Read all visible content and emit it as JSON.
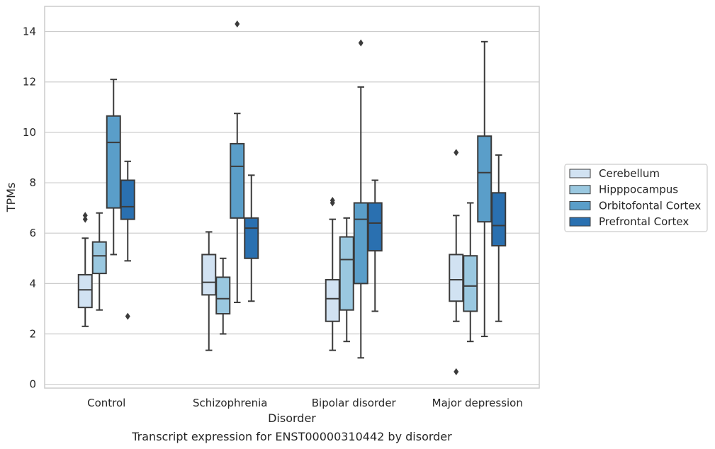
{
  "chart_data": {
    "type": "box",
    "xlabel": "Disorder",
    "ylabel": "TPMs",
    "caption": "Transcript expression for ENST00000310442 by disorder",
    "ylim": [
      -0.15,
      15
    ],
    "yticks": [
      0,
      2,
      4,
      6,
      8,
      10,
      12,
      14
    ],
    "grid": "horizontal",
    "legend_position": "right",
    "categories": [
      "Control",
      "Schizophrenia",
      "Bipolar disorder",
      "Major depression"
    ],
    "series": [
      {
        "name": "Cerebellum",
        "color": "#d1e2f2",
        "boxes": [
          {
            "min": 2.3,
            "q1": 3.05,
            "median": 3.75,
            "q3": 4.35,
            "max": 5.8,
            "outliers": [
              6.55,
              6.7
            ]
          },
          {
            "min": 1.35,
            "q1": 3.55,
            "median": 4.05,
            "q3": 5.15,
            "max": 6.05,
            "outliers": []
          },
          {
            "min": 1.35,
            "q1": 2.5,
            "median": 3.4,
            "q3": 4.15,
            "max": 6.55,
            "outliers": [
              7.2,
              7.3
            ]
          },
          {
            "min": 2.5,
            "q1": 3.3,
            "median": 4.15,
            "q3": 5.15,
            "max": 6.7,
            "outliers": [
              9.2,
              0.5
            ]
          }
        ]
      },
      {
        "name": "Hipppocampus",
        "color": "#9ac8e0",
        "boxes": [
          {
            "min": 2.95,
            "q1": 4.4,
            "median": 5.1,
            "q3": 5.65,
            "max": 6.8,
            "outliers": []
          },
          {
            "min": 2.0,
            "q1": 2.8,
            "median": 3.4,
            "q3": 4.25,
            "max": 5.0,
            "outliers": []
          },
          {
            "min": 1.7,
            "q1": 2.95,
            "median": 4.95,
            "q3": 5.85,
            "max": 6.6,
            "outliers": []
          },
          {
            "min": 1.7,
            "q1": 2.9,
            "median": 3.9,
            "q3": 5.1,
            "max": 7.2,
            "outliers": []
          }
        ]
      },
      {
        "name": "Orbitofontal Cortex",
        "color": "#5a9ec9",
        "boxes": [
          {
            "min": 5.15,
            "q1": 7.0,
            "median": 9.6,
            "q3": 10.65,
            "max": 12.1,
            "outliers": []
          },
          {
            "min": 3.25,
            "q1": 6.6,
            "median": 8.65,
            "q3": 9.55,
            "max": 10.75,
            "outliers": [
              14.3
            ]
          },
          {
            "min": 1.05,
            "q1": 4.0,
            "median": 6.55,
            "q3": 7.2,
            "max": 11.8,
            "outliers": [
              13.55
            ]
          },
          {
            "min": 1.9,
            "q1": 6.45,
            "median": 8.4,
            "q3": 9.85,
            "max": 13.6,
            "outliers": []
          }
        ]
      },
      {
        "name": "Prefrontal Cortex",
        "color": "#2a70b0",
        "boxes": [
          {
            "min": 4.9,
            "q1": 6.55,
            "median": 7.05,
            "q3": 8.1,
            "max": 8.85,
            "outliers": [
              2.7
            ]
          },
          {
            "min": 3.3,
            "q1": 5.0,
            "median": 6.2,
            "q3": 6.6,
            "max": 8.3,
            "outliers": []
          },
          {
            "min": 2.9,
            "q1": 5.3,
            "median": 6.4,
            "q3": 7.2,
            "max": 8.1,
            "outliers": []
          },
          {
            "min": 2.5,
            "q1": 5.5,
            "median": 6.3,
            "q3": 7.6,
            "max": 9.1,
            "outliers": []
          }
        ]
      }
    ]
  }
}
